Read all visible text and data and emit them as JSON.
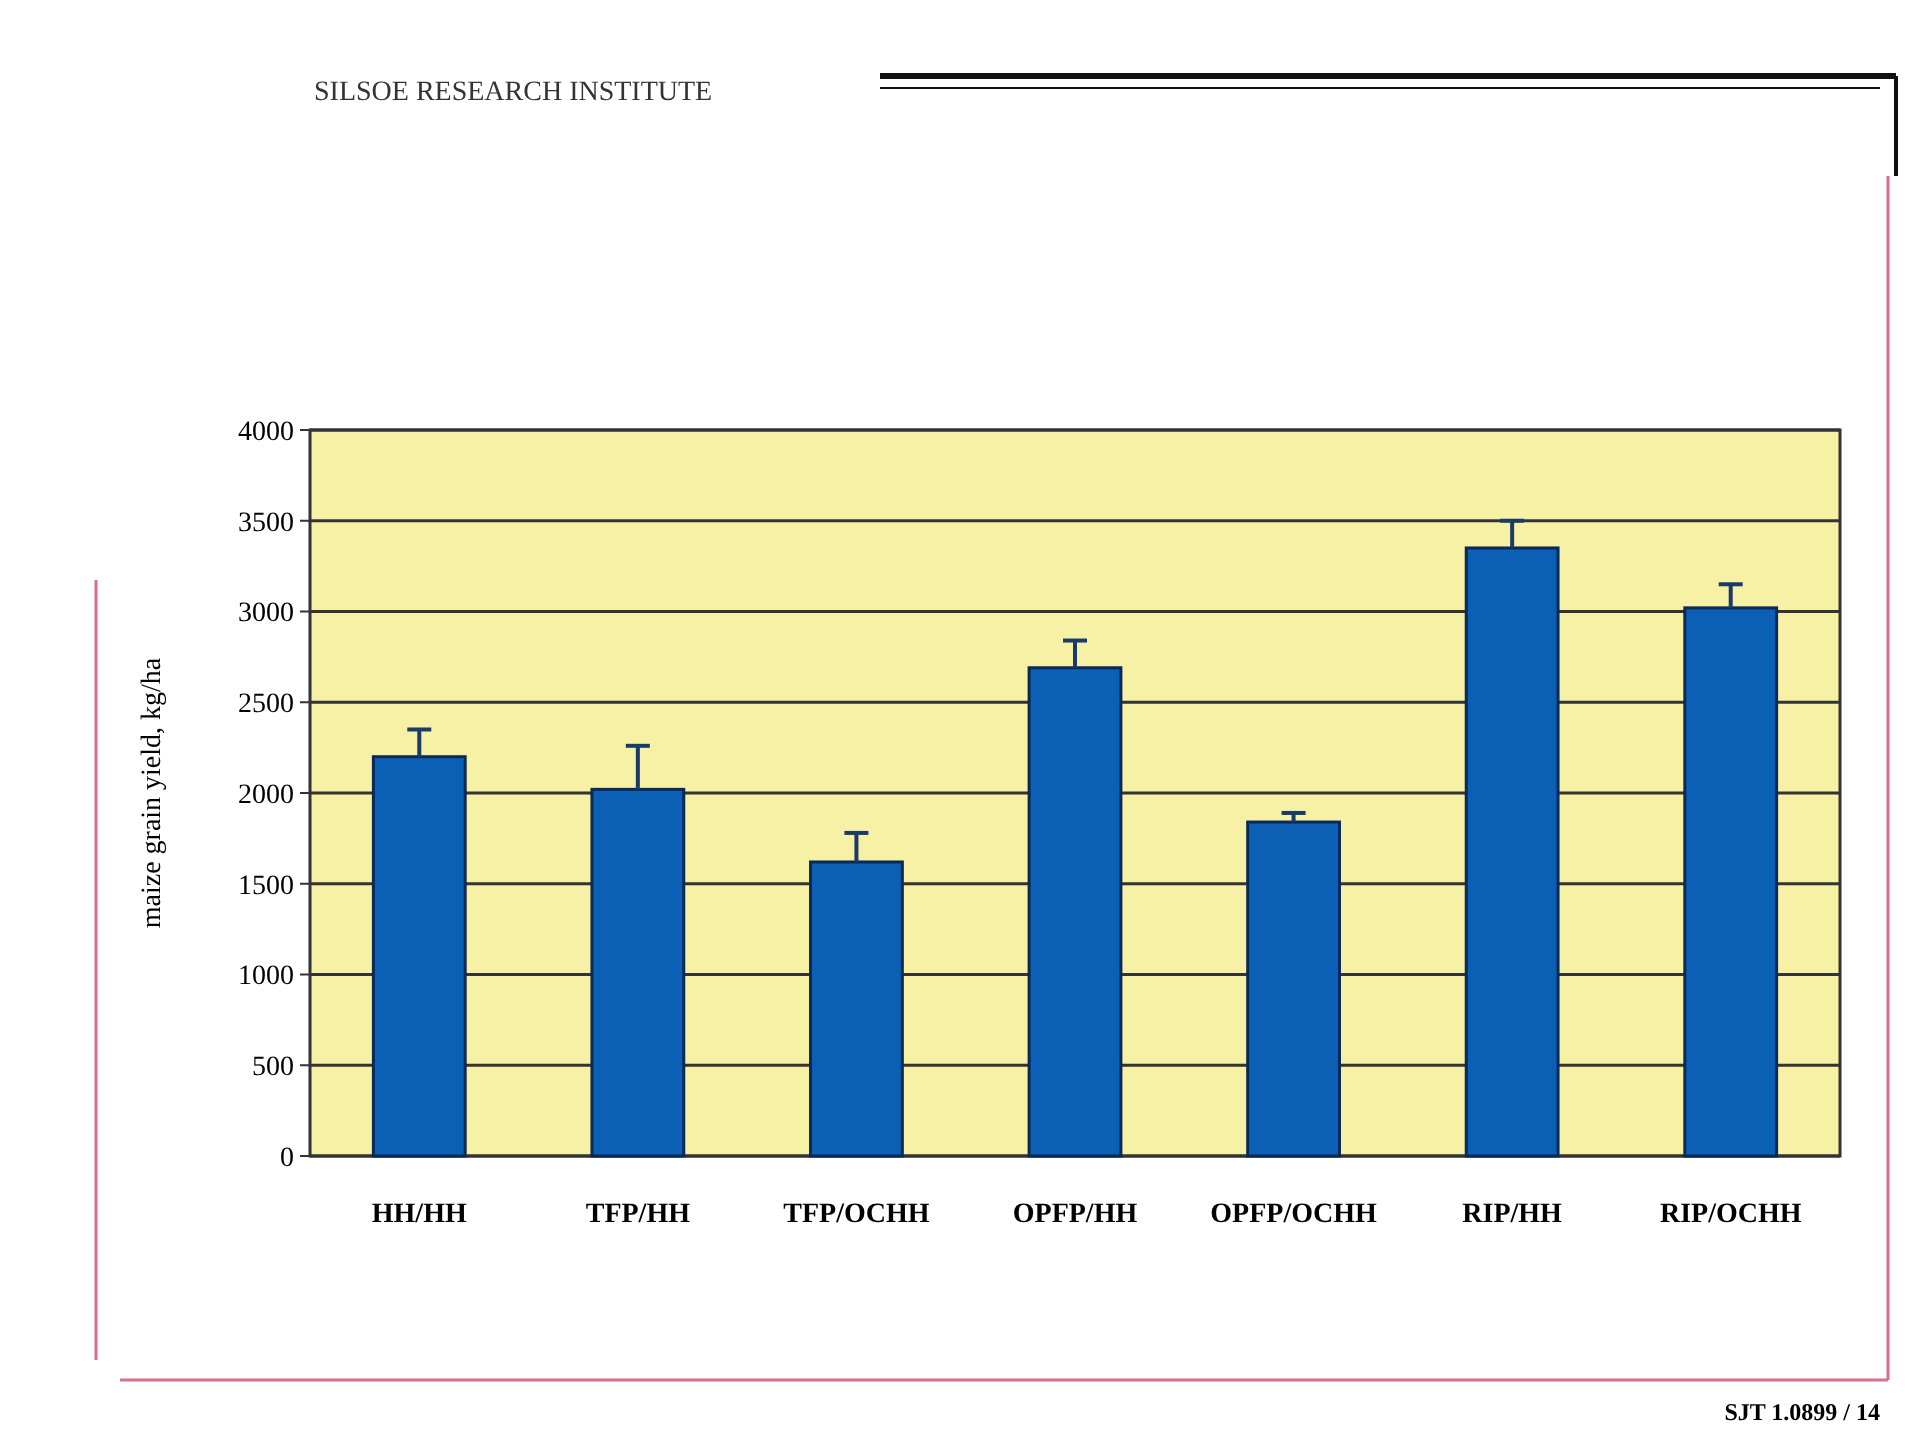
{
  "chart_data": {
    "type": "bar",
    "ylabel": "maize grain yield, kg/ha",
    "categories": [
      "HH/HH",
      "TFP/HH",
      "TFP/OCHH",
      "OPFP/HH",
      "OPFP/OCHH",
      "RIP/HH",
      "RIP/OCHH"
    ],
    "values": [
      2200,
      2020,
      1620,
      2690,
      1840,
      3350,
      3020
    ],
    "errors": [
      150,
      240,
      160,
      150,
      50,
      150,
      130
    ],
    "color": "#0b5fb5",
    "ylim": [
      0,
      4000
    ],
    "yticks": [
      0,
      500,
      1000,
      1500,
      2000,
      2500,
      3000,
      3500,
      4000
    ],
    "grid": "y",
    "annotations": [
      "SILSOE RESEARCH INSTITUTE",
      "SJT 1.0899 / 14"
    ]
  }
}
